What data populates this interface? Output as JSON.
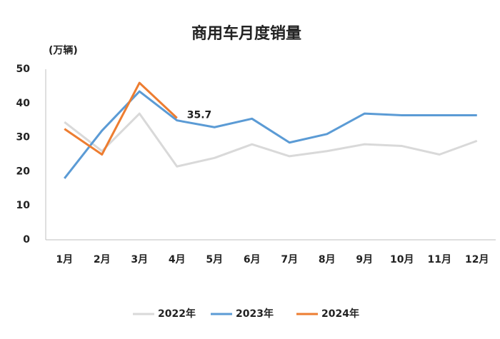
{
  "chart_data": {
    "type": "line",
    "title": "商用车月度销量",
    "y_label": "(万辆)",
    "categories": [
      "1月",
      "2月",
      "3月",
      "4月",
      "5月",
      "6月",
      "7月",
      "8月",
      "9月",
      "10月",
      "11月",
      "12月"
    ],
    "ylim": [
      0,
      50
    ],
    "yticks": [
      0,
      10,
      20,
      30,
      40,
      50
    ],
    "grid": false,
    "legend": "bottom",
    "series": [
      {
        "name": "2022年",
        "color": "#d9d9d9",
        "values": [
          34.5,
          26,
          37,
          21.5,
          24,
          28,
          24.5,
          26,
          28,
          27.5,
          25,
          29
        ]
      },
      {
        "name": "2023年",
        "color": "#5b9bd5",
        "values": [
          18,
          32,
          43.5,
          35,
          33,
          35.5,
          28.5,
          31,
          37,
          36.5,
          36.5,
          36.5
        ]
      },
      {
        "name": "2024年",
        "color": "#ed7d31",
        "values": [
          32.5,
          25,
          46,
          35.7,
          null,
          null,
          null,
          null,
          null,
          null,
          null,
          null
        ],
        "value_labels": [
          null,
          null,
          null,
          "35.7",
          null,
          null,
          null,
          null,
          null,
          null,
          null,
          null
        ]
      }
    ]
  }
}
